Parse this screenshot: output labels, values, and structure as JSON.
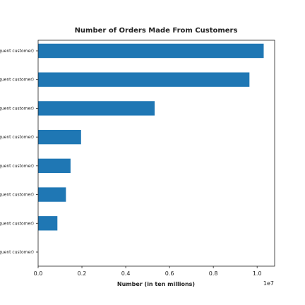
{
  "chart_data": {
    "type": "bar",
    "orientation": "horizontal",
    "title": "Number of Orders Made From Customers",
    "xlabel": "Number (in ten millions)",
    "ylabel": "",
    "x_offset_label": "1e7",
    "categories": [
      "(Frequent customer)",
      "(Frequent customer)",
      "(Frequent customer)",
      "(Frequent customer)",
      "(Frequent customer)",
      "(Frequent customer)",
      "(Frequent customer)",
      "(Frequent customer)"
    ],
    "values": [
      10300000,
      9650000,
      5320000,
      1960000,
      1480000,
      1270000,
      880000,
      0
    ],
    "xlim": [
      0,
      10800000
    ],
    "xticks": [
      0,
      2000000,
      4000000,
      6000000,
      8000000,
      10000000
    ],
    "xtick_labels": [
      "0.0",
      "0.2",
      "0.4",
      "0.6",
      "0.8",
      "1.0"
    ],
    "grid": false,
    "bar_color": "#1f77b4"
  }
}
